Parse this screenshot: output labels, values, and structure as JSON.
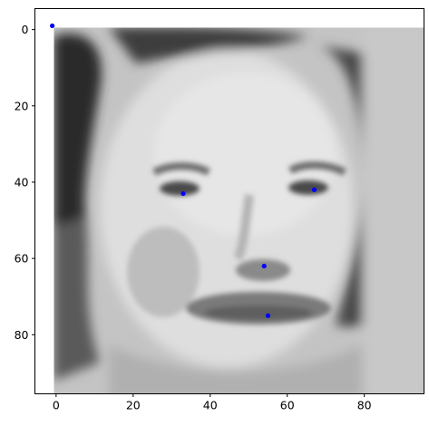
{
  "chart_data": {
    "type": "scatter",
    "title": "",
    "xlabel": "",
    "ylabel": "",
    "image_extent": [
      -0.5,
      95.5
    ],
    "xlim": [
      -5.5,
      95.5
    ],
    "ylim": [
      95.5,
      -5.5
    ],
    "x_ticks": [
      0,
      20,
      40,
      60,
      80
    ],
    "y_ticks": [
      0,
      20,
      40,
      60,
      80
    ],
    "background_image": "grayscale-face-photo",
    "grid": false,
    "legend": "none",
    "series": [
      {
        "color": "#0000ff",
        "points": [
          {
            "x": -1,
            "y": -1
          },
          {
            "x": 33,
            "y": 43
          },
          {
            "x": 67,
            "y": 42
          },
          {
            "x": 54,
            "y": 62
          },
          {
            "x": 55,
            "y": 75
          }
        ]
      }
    ]
  }
}
